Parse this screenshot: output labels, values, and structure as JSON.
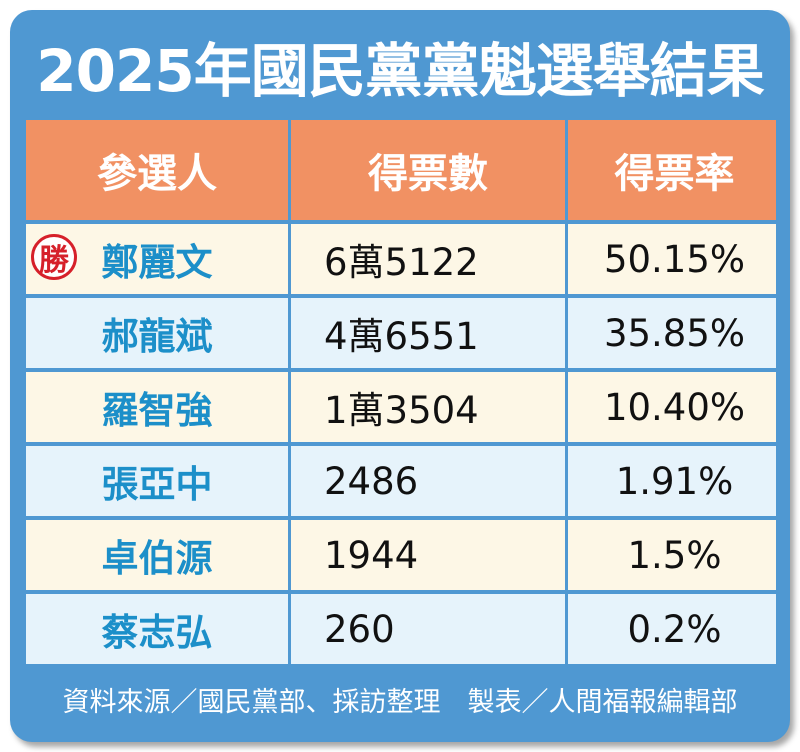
{
  "title": "2025年國民黨黨魁選舉結果",
  "headers": [
    "參選人",
    "得票數",
    "得票率"
  ],
  "winner_badge": "勝",
  "rows": [
    {
      "name": "鄭麗文",
      "votes": "6萬5122",
      "rate": "50.15%",
      "winner": true
    },
    {
      "name": "郝龍斌",
      "votes": "4萬6551",
      "rate": "35.85%",
      "winner": false
    },
    {
      "name": "羅智強",
      "votes": "1萬3504",
      "rate": "10.40%",
      "winner": false
    },
    {
      "name": "張亞中",
      "votes": "2486",
      "rate": "1.91%",
      "winner": false
    },
    {
      "name": "卓伯源",
      "votes": "1944",
      "rate": "1.5%",
      "winner": false
    },
    {
      "name": "蔡志弘",
      "votes": "260",
      "rate": "0.2%",
      "winner": false
    }
  ],
  "footer": "資料來源／國民黨部、採訪整理　製表／人間福報編輯部",
  "colors": {
    "frame": "#4f98d2",
    "header_bg": "#f19163",
    "name_text": "#1c8fc9",
    "badge": "#d6202a",
    "row_odd": "#fdf7e6",
    "row_even": "#e6f3fb"
  },
  "chart_data": {
    "type": "table",
    "title": "2025年國民黨黨魁選舉結果",
    "columns": [
      "參選人",
      "得票數",
      "得票率"
    ],
    "categories": [
      "鄭麗文",
      "郝龍斌",
      "羅智強",
      "張亞中",
      "卓伯源",
      "蔡志弘"
    ],
    "series": [
      {
        "name": "得票數",
        "values": [
          65122,
          46551,
          13504,
          2486,
          1944,
          260
        ]
      },
      {
        "name": "得票率",
        "values": [
          50.15,
          35.85,
          10.4,
          1.91,
          1.5,
          0.2
        ]
      }
    ]
  }
}
